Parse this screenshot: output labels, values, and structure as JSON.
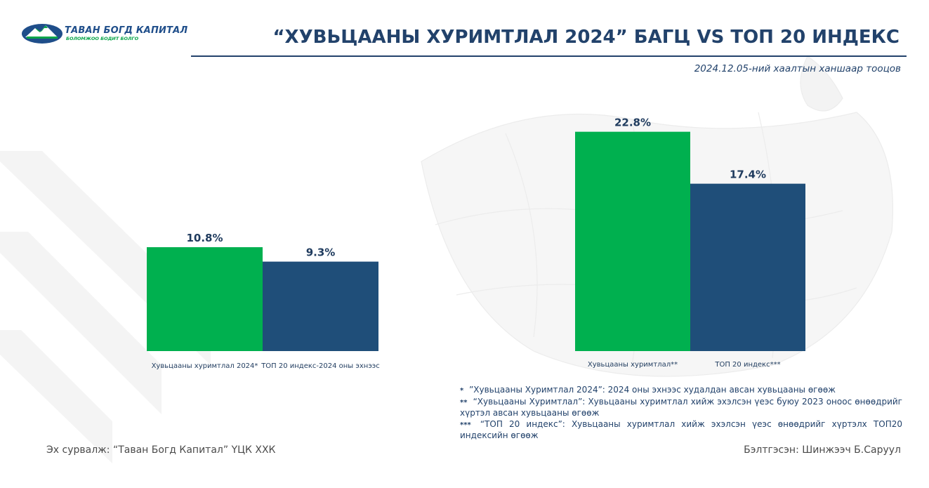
{
  "header": {
    "logo_name": "ТАВАН БОГД КАПИТАЛ",
    "logo_tagline": "БОЛОМЖОО БОДИТ БОЛГО",
    "title": "“ХУВЬЦААНЫ ХУРИМТЛАЛ 2024” БАГЦ VS ТОП 20 ИНДЕКС",
    "subtitle": "2024.12.05-ний хаалтын ханшаар тооцов"
  },
  "colors": {
    "green": "#00b04f",
    "navy": "#1f4e79",
    "title": "#22426b"
  },
  "chart_data": [
    {
      "type": "bar",
      "categories": [
        "Хувьцааны хуримтлал 2024*",
        "ТОП 20 индекс-2024 оны эхнээс"
      ],
      "values": [
        10.8,
        9.3
      ],
      "labels": [
        "10.8%",
        "9.3%"
      ],
      "unit": "%",
      "colors": [
        "#00b04f",
        "#1f4e79"
      ],
      "ylim": [
        0,
        25
      ],
      "grid": false,
      "title": "",
      "xlabel": "",
      "ylabel": ""
    },
    {
      "type": "bar",
      "categories": [
        "Хувьцааны хуримтлал**",
        "ТОП 20 индекс***"
      ],
      "values": [
        22.8,
        17.4
      ],
      "labels": [
        "22.8%",
        "17.4%"
      ],
      "unit": "%",
      "colors": [
        "#00b04f",
        "#1f4e79"
      ],
      "ylim": [
        0,
        25
      ],
      "grid": false,
      "title": "",
      "xlabel": "",
      "ylabel": ""
    }
  ],
  "notes": [
    {
      "mark": "*",
      "text": "”Хувьцааны Хуримтлал 2024”: 2024 оны эхнээс худалдан авсан хувьцааны өгөөж"
    },
    {
      "mark": "**",
      "text": "“Хувьцааны Хуримтлал”: Хувьцааны хуримтлал хийж эхэлсэн үеэс буюу 2023 оноос өнөөдрийг хүртэл авсан хувьцааны өгөөж"
    },
    {
      "mark": "***",
      "text": "“ТОП 20 индекс”: Хувьцааны хуримтлал хийж эхэлсэн үеэс өнөөдрийг хүртэлх ТОП20 индексийн өгөөж"
    }
  ],
  "footer": {
    "source": "Эх сурвалж: “Таван Богд Капитал” ҮЦК ХХК",
    "prepared": "Бэлтгэсэн: Шинжээч Б.Саруул"
  }
}
